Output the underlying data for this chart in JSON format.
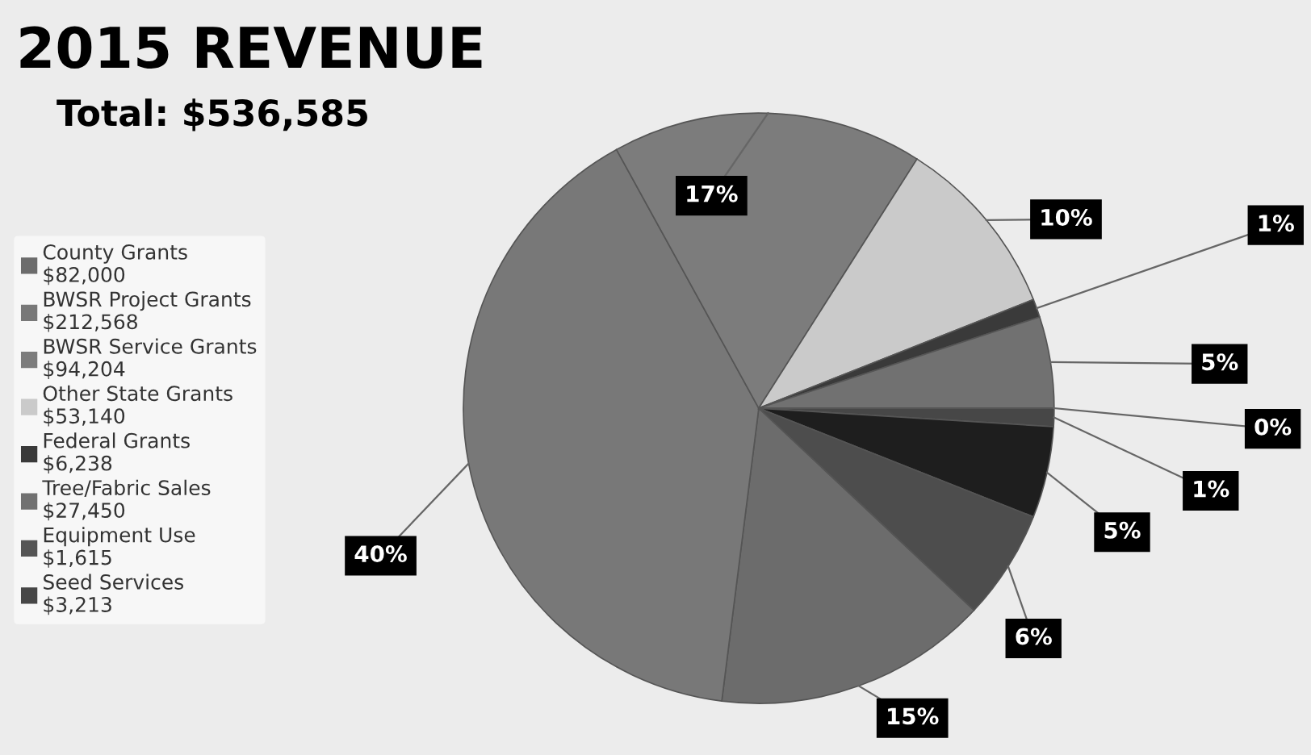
{
  "chart_data": {
    "type": "pie",
    "title": "2015 REVENUE",
    "subtitle": "Total: $536,585",
    "categories": [
      "County Grants\n$82,000",
      "BWSR Project Grants\n$212,568",
      "BWSR Service Grants\n$94,204",
      "Other State Grants\n$53,140",
      "Federal Grants\n$6,238",
      "Tree/Fabric Sales\n$27,450",
      "Equipment Use\n$1,615",
      "Seed Services\n$3,213",
      null,
      null
    ],
    "values": [
      15,
      40,
      17,
      10,
      1,
      5,
      0,
      1,
      5,
      6
    ],
    "value_labels": [
      "15%",
      "40%",
      "17%",
      "10%",
      "1%",
      "5%",
      "0%",
      "1%",
      "5%",
      "6%"
    ],
    "colors": [
      "#6c6c6c",
      "#787878",
      "#7c7c7c",
      "#cacaca",
      "#3a3a3a",
      "#717171",
      "#555555",
      "#474747",
      "#1e1e1e",
      "#4d4d4d"
    ],
    "legend": "left"
  }
}
